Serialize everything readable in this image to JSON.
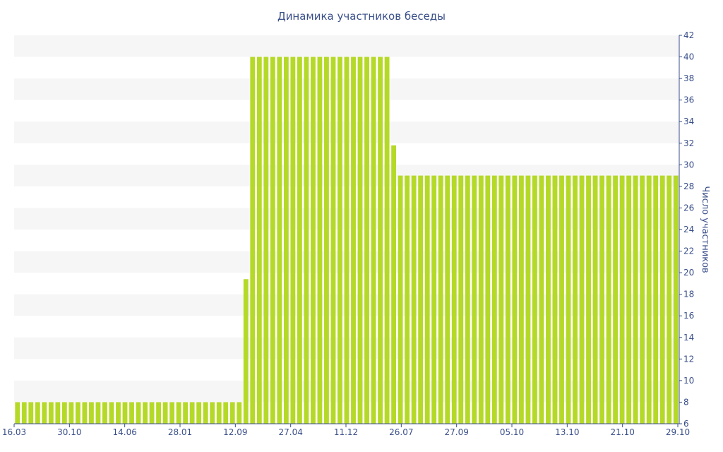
{
  "chart_data": {
    "type": "bar",
    "title": "Динамика участников беседы",
    "ylabel": "Число участников",
    "xlabel": "",
    "y_axis_side": "right",
    "ylim": [
      6,
      42
    ],
    "y_ticks": [
      "6",
      "8",
      "10",
      "12",
      "14",
      "16",
      "18",
      "20",
      "22",
      "24",
      "26",
      "28",
      "30",
      "32",
      "34",
      "36",
      "38",
      "40",
      "42"
    ],
    "x_tick_labels": [
      "16.03",
      "30.10",
      "14.06",
      "28.01",
      "12.09",
      "27.04",
      "11.12",
      "26.07",
      "27.09",
      "05.10",
      "13.10",
      "21.10",
      "29.10"
    ],
    "grid": "horizontal alternating bands",
    "bar_color": "#b5d927",
    "band_color": "#f6f6f6",
    "text_color": "#3a4f8a",
    "values": [
      8,
      8,
      8,
      8,
      8,
      8,
      8,
      8,
      8,
      8,
      8,
      8,
      8,
      8,
      8,
      8,
      8,
      8,
      8,
      8,
      8,
      8,
      8,
      8,
      8,
      8,
      8,
      8,
      8,
      8,
      8,
      8,
      8,
      8,
      19.4,
      40,
      40,
      40,
      40,
      40,
      40,
      40,
      40,
      40,
      40,
      40,
      40,
      40,
      40,
      40,
      40,
      40,
      40,
      40,
      40,
      40,
      31.8,
      29,
      29,
      29,
      29,
      29,
      29,
      29,
      29,
      29,
      29,
      29,
      29,
      29,
      29,
      29,
      29,
      29,
      29,
      29,
      29,
      29,
      29,
      29,
      29,
      29,
      29,
      29,
      29,
      29,
      29,
      29,
      29,
      29,
      29,
      29,
      29,
      29,
      29,
      29,
      29,
      29,
      29
    ]
  }
}
